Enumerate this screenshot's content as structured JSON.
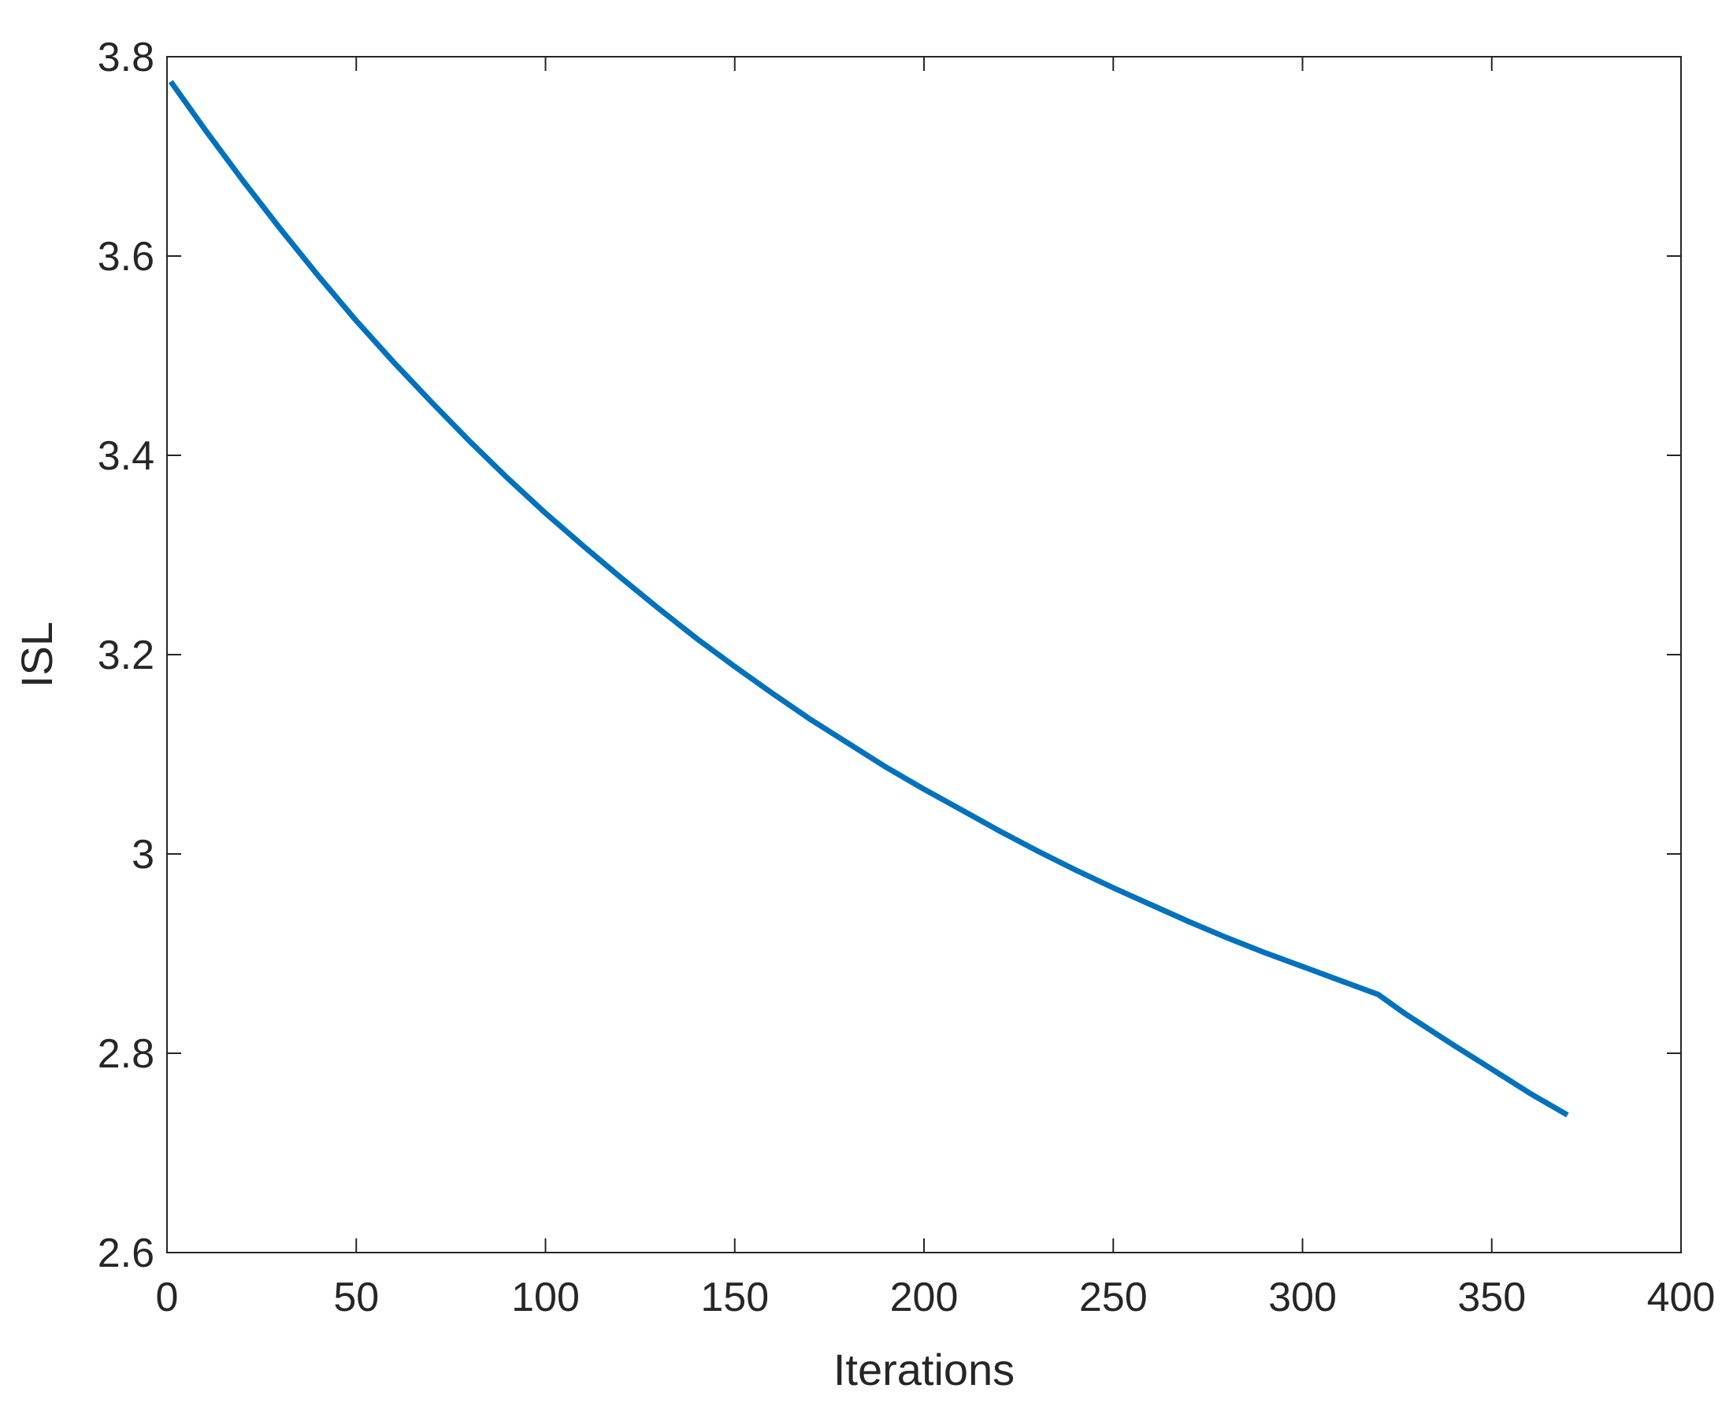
{
  "chart_data": {
    "type": "line",
    "title": "",
    "xlabel": "Iterations",
    "ylabel": "ISL",
    "xlim": [
      0,
      400
    ],
    "ylim": [
      2.6,
      3.8
    ],
    "xticks": [
      0,
      50,
      100,
      150,
      200,
      250,
      300,
      350,
      400
    ],
    "yticks": [
      2.6,
      2.8,
      3.0,
      3.2,
      3.4,
      3.6,
      3.8
    ],
    "xtick_labels": [
      "0",
      "50",
      "100",
      "150",
      "200",
      "250",
      "300",
      "350",
      "400"
    ],
    "ytick_labels": [
      "2.6",
      "2.8",
      "3",
      "3.2",
      "3.4",
      "3.6",
      "3.8"
    ],
    "grid": false,
    "box": true,
    "series": [
      {
        "color": "#0072BD",
        "x": [
          1,
          10,
          20,
          30,
          40,
          50,
          60,
          70,
          80,
          90,
          100,
          110,
          120,
          130,
          140,
          150,
          160,
          170,
          180,
          190,
          200,
          210,
          220,
          230,
          240,
          250,
          260,
          270,
          280,
          290,
          300,
          310,
          320,
          327,
          340,
          350,
          360,
          370
        ],
        "y": [
          3.775,
          3.727,
          3.676,
          3.627,
          3.58,
          3.535,
          3.493,
          3.453,
          3.414,
          3.377,
          3.342,
          3.309,
          3.277,
          3.246,
          3.216,
          3.188,
          3.161,
          3.135,
          3.111,
          3.087,
          3.065,
          3.044,
          3.023,
          3.003,
          2.984,
          2.966,
          2.949,
          2.932,
          2.916,
          2.901,
          2.887,
          2.873,
          2.859,
          2.84,
          2.808,
          2.784,
          2.76,
          2.738
        ]
      }
    ]
  }
}
